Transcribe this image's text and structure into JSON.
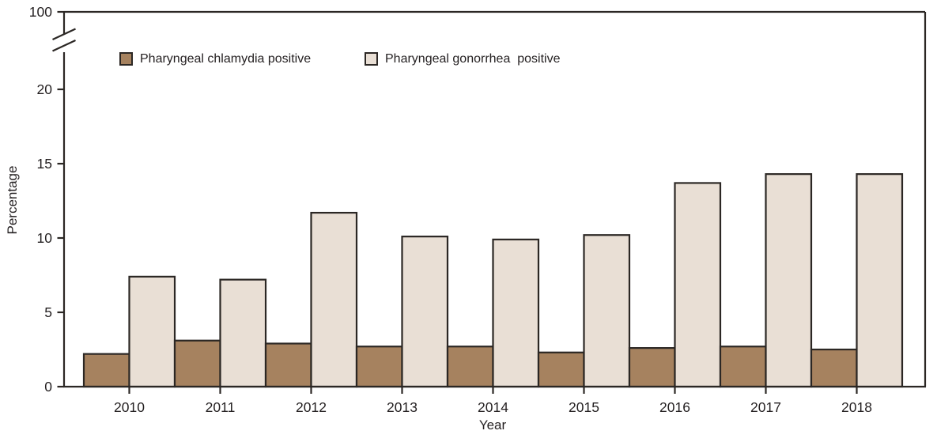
{
  "figure": {
    "background_color": "#ffffff",
    "axis_color": "#2B2724",
    "text_color": "#231F20"
  },
  "chart_data": {
    "type": "bar",
    "title": "",
    "xlabel": "Year",
    "ylabel": "Percentage",
    "categories": [
      "2010",
      "2011",
      "2012",
      "2013",
      "2014",
      "2015",
      "2016",
      "2017",
      "2018"
    ],
    "series": [
      {
        "name": "Pharyngeal chlamydia positive",
        "color": "#A6825F",
        "values": [
          2.2,
          3.1,
          2.9,
          2.7,
          2.7,
          2.3,
          2.6,
          2.7,
          2.5
        ]
      },
      {
        "name": "Pharyngeal gonorrhea  positive",
        "color": "#E9DFD5",
        "values": [
          7.4,
          7.2,
          11.7,
          10.1,
          9.9,
          10.2,
          13.7,
          14.3,
          14.3
        ]
      }
    ],
    "y_ticks": [
      "0",
      "5",
      "10",
      "15",
      "20"
    ],
    "y_axis_break": {
      "enabled": true,
      "upper_tick_label": "100"
    },
    "ylim_lower_segment": [
      0,
      22
    ],
    "bar_outline_color": "#2B2724",
    "legend_position": "top-inside",
    "grid": false
  }
}
